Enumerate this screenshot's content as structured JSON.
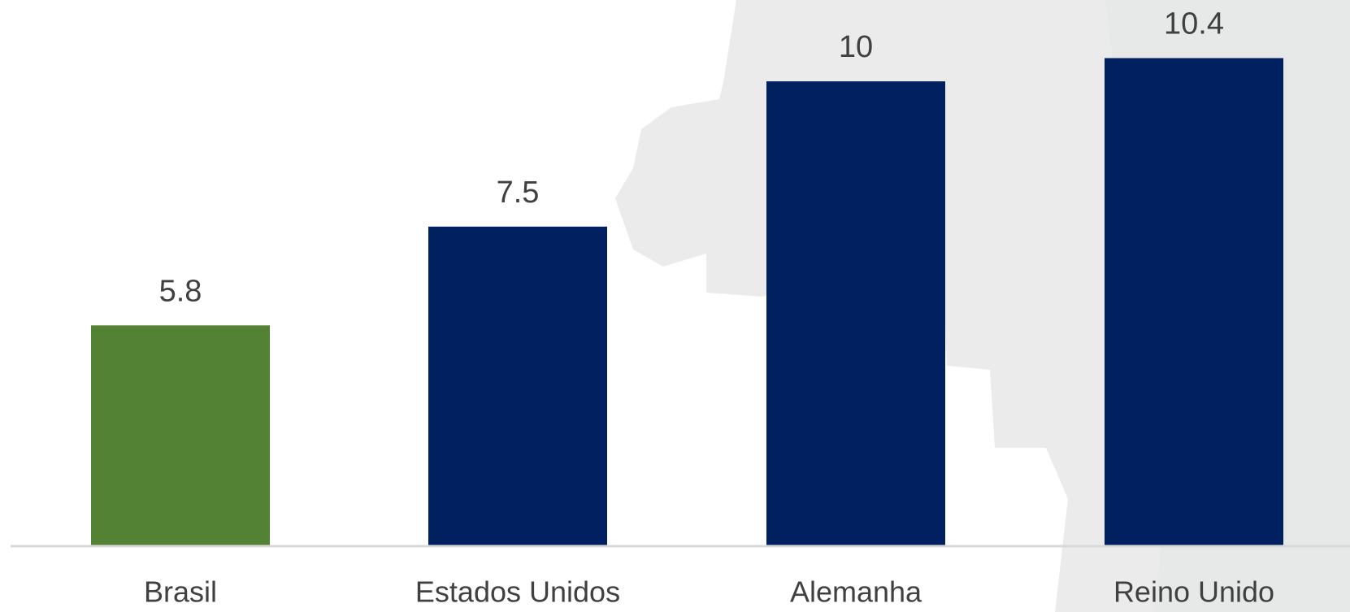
{
  "chart_data": {
    "type": "bar",
    "categories": [
      "Brasil",
      "Estados Unidos",
      "Alemanha",
      "Reino Unido"
    ],
    "values": [
      5.8,
      7.5,
      10,
      10.4
    ],
    "colors": [
      "#548235",
      "#002060",
      "#002060",
      "#002060"
    ],
    "ylim": [
      2,
      11.4
    ]
  }
}
